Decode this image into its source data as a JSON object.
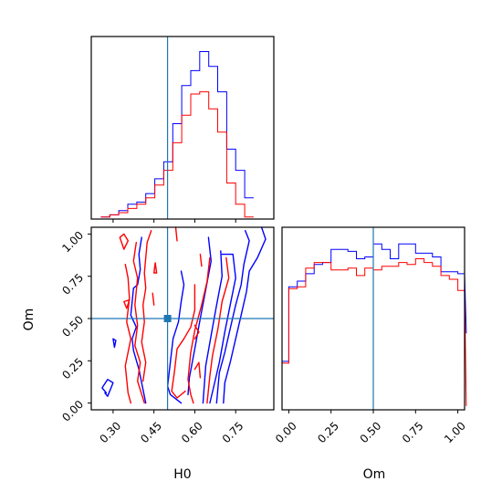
{
  "colors": {
    "series_a": "#0000ff",
    "series_b": "#ff0000",
    "truth": "#1f77b4",
    "frame": "#000000"
  },
  "chart_data": {
    "type": "corner",
    "parameters": [
      "H0",
      "Om"
    ],
    "truth_values": {
      "H0": 0.5,
      "Om": 0.5
    },
    "xlabel": "H0",
    "ylabel": "Om",
    "H0_ticks": [
      "0.30",
      "0.45",
      "0.60",
      "0.75"
    ],
    "Om_ticks": [
      "0.00",
      "0.25",
      "0.50",
      "0.75",
      "1.00"
    ],
    "H0_range": [
      0.22,
      0.89
    ],
    "Om_range": [
      -0.04,
      1.04
    ],
    "hist_H0": {
      "bin_edges": [
        0.255,
        0.288,
        0.321,
        0.354,
        0.387,
        0.42,
        0.453,
        0.486,
        0.519,
        0.552,
        0.585,
        0.618,
        0.651,
        0.684,
        0.717,
        0.75,
        0.783,
        0.816
      ],
      "series": [
        {
          "color_key": "series_a",
          "counts": [
            1,
            2,
            4,
            7,
            8,
            12,
            19,
            27,
            45,
            63,
            70,
            79,
            72,
            60,
            33,
            23,
            10
          ]
        },
        {
          "color_key": "series_b",
          "counts": [
            1,
            2,
            3,
            5,
            7,
            10,
            16,
            23,
            36,
            49,
            59,
            60,
            52,
            41,
            17,
            7,
            1
          ]
        }
      ]
    },
    "hist_Om": {
      "bin_edges": [
        -0.05,
        0.0,
        0.05,
        0.1,
        0.15,
        0.2,
        0.25,
        0.3,
        0.35,
        0.4,
        0.45,
        0.5,
        0.55,
        0.6,
        0.65,
        0.7,
        0.75,
        0.8,
        0.85,
        0.9,
        0.95,
        1.0,
        1.05
      ],
      "series": [
        {
          "color_key": "series_a",
          "counts": [
            26,
            66,
            69,
            73,
            78,
            79,
            86,
            86,
            85,
            81,
            82,
            89,
            86,
            81,
            89,
            89,
            84,
            84,
            82,
            74,
            74,
            73,
            41
          ]
        },
        {
          "color_key": "series_b",
          "counts": [
            25,
            65,
            66,
            76,
            79,
            79,
            75,
            75,
            76,
            72,
            76,
            75,
            77,
            77,
            79,
            78,
            81,
            79,
            77,
            72,
            70,
            64,
            2
          ]
        }
      ]
    },
    "contours": [
      {
        "color_key": "series_a",
        "lines": [
          [
            [
              0.65,
              0.98
            ],
            [
              0.66,
              0.84
            ],
            [
              0.64,
              0.67
            ],
            [
              0.62,
              0.5
            ],
            [
              0.6,
              0.32
            ],
            [
              0.58,
              0.15
            ],
            [
              0.575,
              0.05
            ]
          ],
          [
            [
              0.695,
              0.9
            ],
            [
              0.7,
              0.75
            ],
            [
              0.68,
              0.58
            ],
            [
              0.66,
              0.4
            ],
            [
              0.64,
              0.22
            ],
            [
              0.63,
              0.0
            ]
          ],
          [
            [
              0.7,
              0.88
            ],
            [
              0.74,
              0.88
            ],
            [
              0.75,
              0.74
            ],
            [
              0.73,
              0.58
            ],
            [
              0.71,
              0.42
            ],
            [
              0.69,
              0.24
            ],
            [
              0.67,
              0.1
            ],
            [
              0.655,
              0.0
            ]
          ],
          [
            [
              0.785,
              1.02
            ],
            [
              0.8,
              0.96
            ],
            [
              0.78,
              0.82
            ],
            [
              0.77,
              0.7
            ],
            [
              0.75,
              0.58
            ],
            [
              0.73,
              0.44
            ],
            [
              0.71,
              0.3
            ],
            [
              0.69,
              0.18
            ],
            [
              0.68,
              0.0
            ]
          ],
          [
            [
              0.845,
              1.04
            ],
            [
              0.86,
              0.97
            ],
            [
              0.83,
              0.86
            ],
            [
              0.8,
              0.78
            ],
            [
              0.79,
              0.66
            ],
            [
              0.77,
              0.52
            ],
            [
              0.75,
              0.38
            ],
            [
              0.73,
              0.24
            ],
            [
              0.71,
              0.12
            ],
            [
              0.705,
              0.0
            ]
          ],
          [
            [
              0.275,
              0.06
            ],
            [
              0.26,
              0.09
            ],
            [
              0.28,
              0.14
            ],
            [
              0.3,
              0.12
            ],
            [
              0.28,
              0.04
            ],
            [
              0.27,
              0.06
            ]
          ],
          [
            [
              0.375,
              0.68
            ],
            [
              0.365,
              0.52
            ],
            [
              0.385,
              0.45
            ],
            [
              0.37,
              0.38
            ],
            [
              0.375,
              0.31
            ],
            [
              0.395,
              0.2
            ],
            [
              0.41,
              0.08
            ],
            [
              0.42,
              0.0
            ]
          ],
          [
            [
              0.405,
              0.98
            ],
            [
              0.395,
              0.88
            ],
            [
              0.4,
              0.79
            ],
            [
              0.39,
              0.7
            ],
            [
              0.375,
              0.68
            ]
          ],
          [
            [
              0.3,
              0.38
            ],
            [
              0.31,
              0.37
            ],
            [
              0.305,
              0.33
            ],
            [
              0.3,
              0.38
            ]
          ],
          [
            [
              0.55,
              0.78
            ],
            [
              0.56,
              0.7
            ],
            [
              0.55,
              0.6
            ],
            [
              0.54,
              0.48
            ],
            [
              0.52,
              0.38
            ],
            [
              0.51,
              0.24
            ],
            [
              0.5,
              0.1
            ],
            [
              0.51,
              0.05
            ],
            [
              0.55,
              0.0
            ]
          ]
        ]
      },
      {
        "color_key": "series_b",
        "lines": [
          [
            [
              0.345,
              0.82
            ],
            [
              0.355,
              0.74
            ],
            [
              0.36,
              0.62
            ],
            [
              0.35,
              0.48
            ],
            [
              0.365,
              0.38
            ],
            [
              0.345,
              0.22
            ],
            [
              0.355,
              0.06
            ],
            [
              0.365,
              0.0
            ]
          ],
          [
            [
              0.385,
              0.95
            ],
            [
              0.375,
              0.84
            ],
            [
              0.39,
              0.74
            ],
            [
              0.38,
              0.58
            ],
            [
              0.39,
              0.46
            ],
            [
              0.38,
              0.34
            ],
            [
              0.4,
              0.24
            ],
            [
              0.39,
              0.13
            ],
            [
              0.415,
              0.0
            ]
          ],
          [
            [
              0.44,
              1.02
            ],
            [
              0.425,
              0.95
            ],
            [
              0.42,
              0.86
            ],
            [
              0.415,
              0.77
            ],
            [
              0.42,
              0.68
            ],
            [
              0.41,
              0.58
            ],
            [
              0.415,
              0.48
            ],
            [
              0.405,
              0.36
            ],
            [
              0.42,
              0.24
            ],
            [
              0.41,
              0.13
            ]
          ],
          [
            [
              0.325,
              0.98
            ],
            [
              0.34,
              0.91
            ],
            [
              0.355,
              0.96
            ],
            [
              0.34,
              1.0
            ],
            [
              0.325,
              0.98
            ]
          ],
          [
            [
              0.34,
              0.6
            ],
            [
              0.36,
              0.61
            ],
            [
              0.35,
              0.56
            ],
            [
              0.34,
              0.6
            ]
          ],
          [
            [
              0.45,
              0.77
            ],
            [
              0.455,
              0.83
            ],
            [
              0.46,
              0.77
            ],
            [
              0.45,
              0.77
            ]
          ],
          [
            [
              0.445,
              0.65
            ],
            [
              0.45,
              0.58
            ]
          ],
          [
            [
              0.53,
              1.04
            ],
            [
              0.535,
              0.96
            ]
          ],
          [
            [
              0.655,
              0.86
            ],
            [
              0.645,
              0.72
            ],
            [
              0.625,
              0.58
            ],
            [
              0.6,
              0.43
            ],
            [
              0.585,
              0.3
            ],
            [
              0.575,
              0.14
            ],
            [
              0.585,
              0.05
            ],
            [
              0.595,
              0.0
            ]
          ],
          [
            [
              0.715,
              0.86
            ],
            [
              0.725,
              0.74
            ],
            [
              0.7,
              0.6
            ],
            [
              0.685,
              0.44
            ],
            [
              0.665,
              0.28
            ],
            [
              0.655,
              0.16
            ],
            [
              0.645,
              0.0
            ]
          ],
          [
            [
              0.6,
              0.7
            ],
            [
              0.6,
              0.55
            ],
            [
              0.585,
              0.45
            ],
            [
              0.56,
              0.38
            ],
            [
              0.535,
              0.32
            ],
            [
              0.525,
              0.18
            ],
            [
              0.515,
              0.07
            ],
            [
              0.535,
              0.03
            ],
            [
              0.565,
              0.07
            ]
          ],
          [
            [
              0.6,
              0.46
            ],
            [
              0.615,
              0.42
            ],
            [
              0.6,
              0.38
            ]
          ],
          [
            [
              0.6,
              0.2
            ],
            [
              0.615,
              0.24
            ],
            [
              0.62,
              0.15
            ]
          ],
          [
            [
              0.62,
              0.88
            ],
            [
              0.625,
              0.81
            ]
          ]
        ]
      }
    ]
  }
}
